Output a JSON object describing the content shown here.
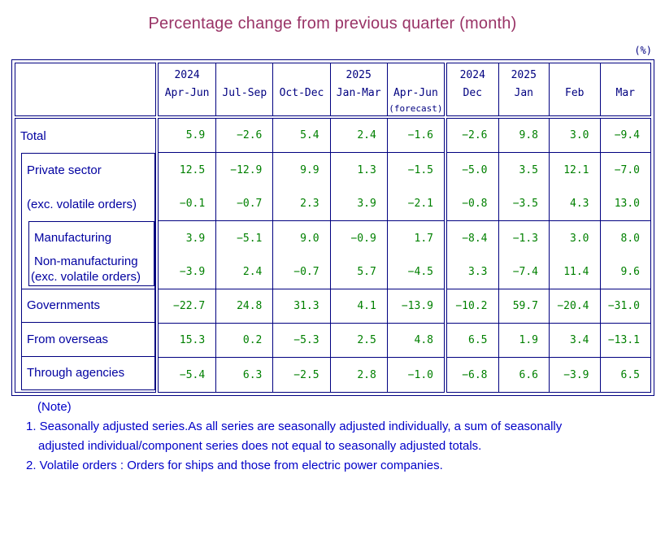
{
  "title": "Percentage change from previous quarter (month)",
  "unit_label": "(%)",
  "table": {
    "quarter_columns": [
      {
        "year": "2024",
        "period": "Apr-Jun",
        "sub": ""
      },
      {
        "year": "",
        "period": "Jul-Sep",
        "sub": ""
      },
      {
        "year": "",
        "period": "Oct-Dec",
        "sub": ""
      },
      {
        "year": "2025",
        "period": "Jan-Mar",
        "sub": ""
      },
      {
        "year": "",
        "period": "Apr-Jun",
        "sub": "(forecast)"
      }
    ],
    "month_columns": [
      {
        "year": "2024",
        "period": "Dec"
      },
      {
        "year": "2025",
        "period": "Jan"
      },
      {
        "year": "",
        "period": "Feb"
      },
      {
        "year": "",
        "period": "Mar"
      }
    ],
    "rows": [
      {
        "label": "Total",
        "label2": "",
        "quarters": [
          "5.9",
          "−2.6",
          "5.4",
          "2.4",
          "−1.6"
        ],
        "months": [
          "−2.6",
          "9.8",
          "3.0",
          "−9.4"
        ]
      },
      {
        "label": "Private sector",
        "label2": "",
        "quarters": [
          "12.5",
          "−12.9",
          "9.9",
          "1.3",
          "−1.5"
        ],
        "months": [
          "−5.0",
          "3.5",
          "12.1",
          "−7.0"
        ]
      },
      {
        "label": "(exc. volatile orders)",
        "label2": "",
        "quarters": [
          "−0.1",
          "−0.7",
          "2.3",
          "3.9",
          "−2.1"
        ],
        "months": [
          "−0.8",
          "−3.5",
          "4.3",
          "13.0"
        ]
      },
      {
        "label": "Manufacturing",
        "label2": "",
        "quarters": [
          "3.9",
          "−5.1",
          "9.0",
          "−0.9",
          "1.7"
        ],
        "months": [
          "−8.4",
          "−1.3",
          "3.0",
          "8.0"
        ]
      },
      {
        "label": "Non-manufacturing",
        "label2": "(exc. volatile orders)",
        "quarters": [
          "−3.9",
          "2.4",
          "−0.7",
          "5.7",
          "−4.5"
        ],
        "months": [
          "3.3",
          "−7.4",
          "11.4",
          "9.6"
        ]
      },
      {
        "label": "Governments",
        "label2": "",
        "quarters": [
          "−22.7",
          "24.8",
          "31.3",
          "4.1",
          "−13.9"
        ],
        "months": [
          "−10.2",
          "59.7",
          "−20.4",
          "−31.0"
        ]
      },
      {
        "label": "From overseas",
        "label2": "",
        "quarters": [
          "15.3",
          "0.2",
          "−5.3",
          "2.5",
          "4.8"
        ],
        "months": [
          "6.5",
          "1.9",
          "3.4",
          "−13.1"
        ]
      },
      {
        "label": "Through agencies",
        "label2": "",
        "quarters": [
          "−5.4",
          "6.3",
          "−2.5",
          "2.8",
          "−1.0"
        ],
        "months": [
          "−6.8",
          "6.6",
          "−3.9",
          "6.5"
        ]
      }
    ]
  },
  "notes": {
    "heading": "(Note)",
    "line1": "1. Seasonally adjusted series.As all series are seasonally adjusted individually,  a sum of seasonally",
    "line2": "adjusted individual/component series does not equal to seasonally adjusted totals.",
    "line3": "2. Volatile orders : Orders for ships and those from electric power companies."
  },
  "colors": {
    "border": "#000080",
    "header_text": "#000080",
    "value_text": "#008000",
    "label_text": "#0000A0",
    "note_text": "#0000C8",
    "title_text": "#993366"
  }
}
